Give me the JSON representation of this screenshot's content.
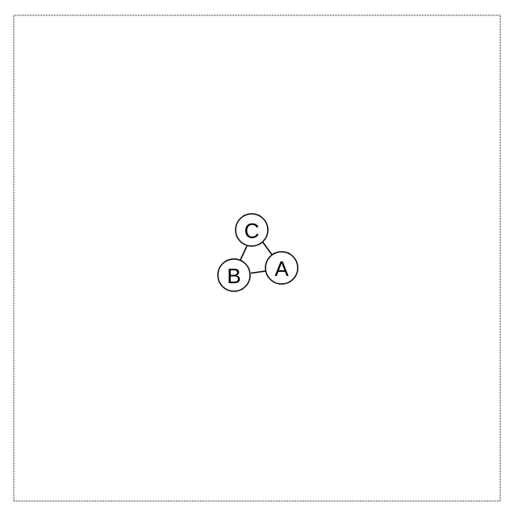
{
  "graph": {
    "nodes": [
      {
        "id": "A",
        "label": "A"
      },
      {
        "id": "B",
        "label": "B"
      },
      {
        "id": "C",
        "label": "C"
      }
    ],
    "edges": [
      {
        "from": "C",
        "to": "A"
      },
      {
        "from": "C",
        "to": "B"
      },
      {
        "from": "B",
        "to": "A"
      }
    ],
    "colors": {
      "stroke": "#000000",
      "node_fill": "#ffffff",
      "background": "#ffffff"
    }
  }
}
